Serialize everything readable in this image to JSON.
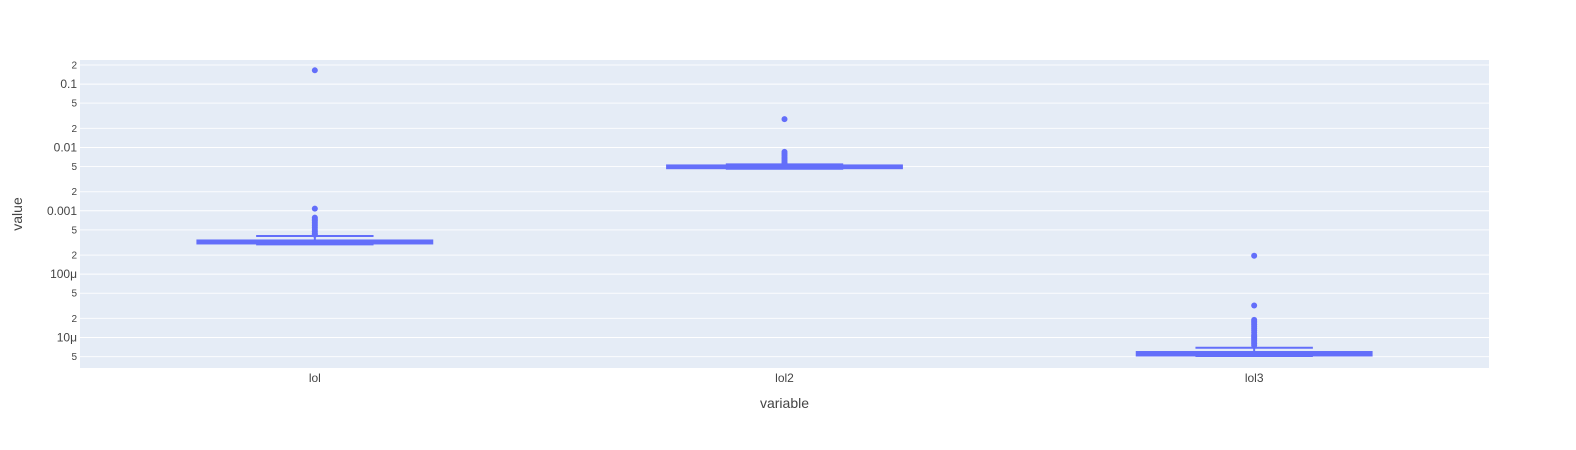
{
  "chart_data": {
    "type": "box",
    "xlabel": "variable",
    "ylabel": "value",
    "yscale": "log",
    "ylim": [
      3.3e-06,
      0.24
    ],
    "categories": [
      "lol",
      "lol2",
      "lol3"
    ],
    "major_ticks": [
      {
        "value": 0.1,
        "label": "0.1"
      },
      {
        "value": 0.01,
        "label": "0.01"
      },
      {
        "value": 0.001,
        "label": "0.001"
      },
      {
        "value": 0.0001,
        "label": "100μ"
      },
      {
        "value": 1e-05,
        "label": "10μ"
      }
    ],
    "minor_ticks": [
      {
        "value": 0.2,
        "label": "2"
      },
      {
        "value": 0.05,
        "label": "5"
      },
      {
        "value": 0.02,
        "label": "2"
      },
      {
        "value": 0.005,
        "label": "5"
      },
      {
        "value": 0.002,
        "label": "2"
      },
      {
        "value": 0.0005,
        "label": "5"
      },
      {
        "value": 0.0002,
        "label": "2"
      },
      {
        "value": 5e-05,
        "label": "5"
      },
      {
        "value": 2e-05,
        "label": "2"
      },
      {
        "value": 5e-06,
        "label": "5"
      }
    ],
    "boxes": [
      {
        "name": "lol",
        "lowerfence": 0.000295,
        "q1": 0.000305,
        "median": 0.00032,
        "q3": 0.00034,
        "upperfence": 0.0004,
        "outliers": [
          0.165,
          0.00108,
          0.00078,
          0.00074,
          0.0007,
          0.00066,
          0.00062,
          0.00058,
          0.00054,
          0.0005,
          0.00047,
          0.00044,
          0.00042
        ]
      },
      {
        "name": "lol2",
        "lowerfence": 0.0046,
        "q1": 0.0047,
        "median": 0.0049,
        "q3": 0.0052,
        "upperfence": 0.0054,
        "outliers": [
          0.028,
          0.0085,
          0.008,
          0.0075,
          0.007,
          0.0066,
          0.0062,
          0.0058,
          0.0056
        ]
      },
      {
        "name": "lol3",
        "lowerfence": 5.1e-06,
        "q1": 5.2e-06,
        "median": 5.5e-06,
        "q3": 5.9e-06,
        "upperfence": 6.9e-06,
        "outliers": [
          0.000195,
          3.2e-05,
          1.9e-05,
          1.8e-05,
          1.7e-05,
          1.6e-05,
          1.5e-05,
          1.4e-05,
          1.3e-05,
          1.2e-05,
          1.1e-05,
          1.05e-05,
          1e-05,
          9.5e-06,
          9e-06,
          8.5e-06,
          8e-06,
          7.5e-06
        ]
      }
    ],
    "color": "#636efa",
    "plot_bg": "#e5ecf6",
    "grid_color": "#ffffff"
  }
}
